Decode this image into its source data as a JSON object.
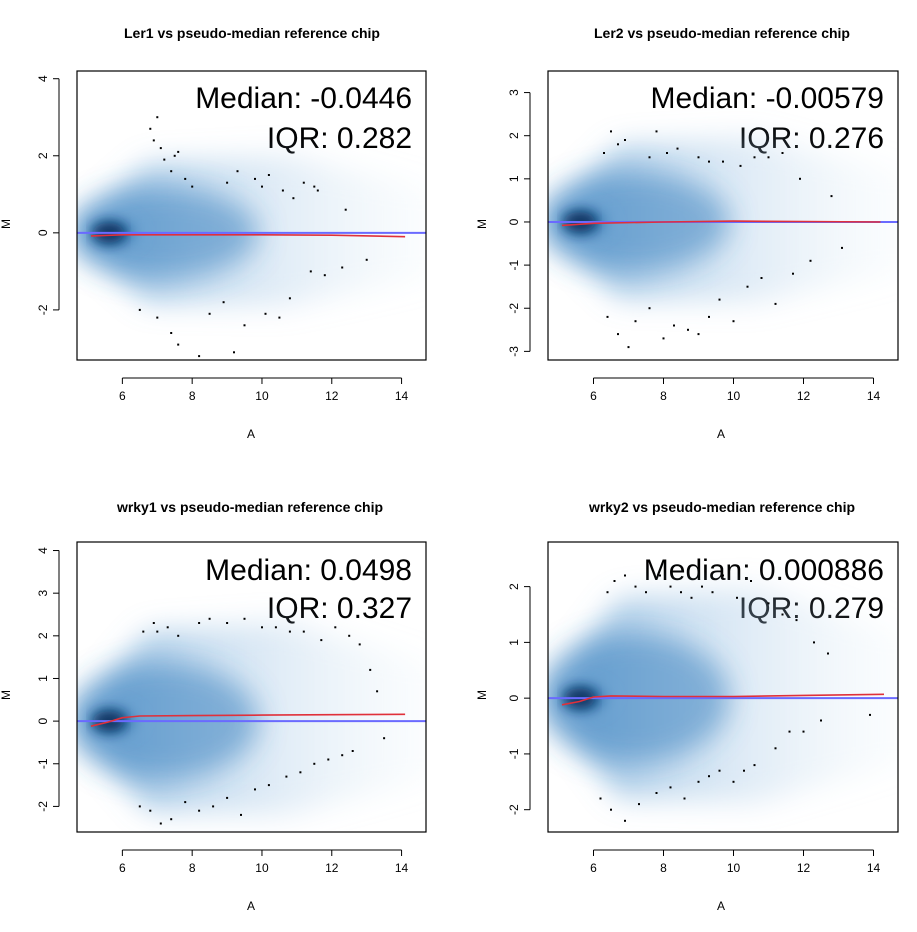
{
  "figure": {
    "panels": [
      {
        "title": "Ler1 vs pseudo-median reference chip",
        "median_text": "Median: -0.0446",
        "iqr_text": "IQR: 0.282",
        "xlabel": "A",
        "ylabel": "M"
      },
      {
        "title": "Ler2 vs pseudo-median reference chip",
        "median_text": "Median: -0.00579",
        "iqr_text": "IQR: 0.276",
        "xlabel": "A",
        "ylabel": "M"
      },
      {
        "title": "wrky1 vs pseudo-median reference chip",
        "median_text": "Median: 0.0498",
        "iqr_text": "IQR: 0.327",
        "xlabel": "A",
        "ylabel": "M"
      },
      {
        "title": "wrky2 vs pseudo-median reference chip",
        "median_text": "Median: 0.000886",
        "iqr_text": "IQR: 0.279",
        "xlabel": "A",
        "ylabel": "M"
      }
    ]
  },
  "colors": {
    "density": "#2b7bba",
    "zero_line": "#6a6aff",
    "loess_line": "#e0303a",
    "outlier_points": "#000000"
  },
  "chart_data": [
    {
      "type": "scatter",
      "title": "Ler1 vs pseudo-median reference chip",
      "xlabel": "A",
      "ylabel": "M",
      "xlim": [
        4.7,
        14.7
      ],
      "ylim": [
        -3.3,
        4.2
      ],
      "xticks": [
        6,
        8,
        10,
        12,
        14
      ],
      "yticks": [
        -2,
        0,
        2,
        4
      ],
      "density_center": [
        5.6,
        0
      ],
      "median": -0.0446,
      "iqr": 0.282,
      "zero_line": 0,
      "loess": {
        "x": [
          5.1,
          6,
          8,
          10,
          12,
          14.1
        ],
        "y": [
          -0.08,
          -0.05,
          -0.05,
          -0.05,
          -0.06,
          -0.1
        ]
      },
      "outliers": {
        "x": [
          6.8,
          6.9,
          7.0,
          7.1,
          7.2,
          7.4,
          7.5,
          7.6,
          7.8,
          8.0,
          9.0,
          9.3,
          9.8,
          10.0,
          10.2,
          10.6,
          10.9,
          11.2,
          11.5,
          11.6,
          12.4,
          6.5,
          7.0,
          7.4,
          7.6,
          8.2,
          8.5,
          8.9,
          9.2,
          9.5,
          10.1,
          10.5,
          10.8,
          11.4,
          11.8,
          12.3,
          13.0
        ],
        "y": [
          2.7,
          2.4,
          3.0,
          2.2,
          1.9,
          1.6,
          2.0,
          2.1,
          1.4,
          1.2,
          1.3,
          1.6,
          1.4,
          1.2,
          1.5,
          1.1,
          0.9,
          1.3,
          1.2,
          1.1,
          0.6,
          -2.0,
          -2.2,
          -2.6,
          -2.9,
          -3.2,
          -2.1,
          -1.8,
          -3.1,
          -2.4,
          -2.1,
          -2.2,
          -1.7,
          -1.0,
          -1.1,
          -0.9,
          -0.7
        ]
      }
    },
    {
      "type": "scatter",
      "title": "Ler2 vs pseudo-median reference chip",
      "xlabel": "A",
      "ylabel": "M",
      "xlim": [
        4.7,
        14.7
      ],
      "ylim": [
        -3.2,
        3.5
      ],
      "xticks": [
        6,
        8,
        10,
        12,
        14
      ],
      "yticks": [
        -3,
        -2,
        -1,
        0,
        1,
        2,
        3
      ],
      "density_center": [
        5.6,
        0
      ],
      "median": -0.00579,
      "iqr": 0.276,
      "zero_line": 0,
      "loess": {
        "x": [
          5.1,
          6,
          8,
          10,
          12,
          14.2
        ],
        "y": [
          -0.08,
          -0.03,
          0.0,
          0.02,
          0.01,
          0.0
        ]
      },
      "outliers": {
        "x": [
          6.3,
          6.5,
          6.7,
          6.9,
          7.6,
          7.8,
          8.1,
          8.4,
          9.0,
          9.3,
          9.7,
          10.2,
          10.6,
          11.0,
          11.4,
          11.9,
          12.8,
          6.4,
          6.7,
          7.0,
          7.2,
          7.6,
          8.0,
          8.3,
          8.7,
          9.0,
          9.3,
          9.6,
          10.0,
          10.4,
          10.8,
          11.2,
          11.7,
          12.2,
          13.1
        ],
        "y": [
          1.6,
          2.1,
          1.8,
          1.9,
          1.5,
          2.1,
          1.6,
          1.7,
          1.5,
          1.4,
          1.4,
          1.3,
          1.5,
          1.5,
          1.6,
          1.0,
          0.6,
          -2.2,
          -2.6,
          -2.9,
          -2.3,
          -2.0,
          -2.7,
          -2.4,
          -2.5,
          -2.6,
          -2.2,
          -1.8,
          -2.3,
          -1.5,
          -1.3,
          -1.9,
          -1.2,
          -0.9,
          -0.6
        ]
      }
    },
    {
      "type": "scatter",
      "title": "wrky1 vs pseudo-median reference chip",
      "xlabel": "A",
      "ylabel": "M",
      "xlim": [
        4.7,
        14.7
      ],
      "ylim": [
        -2.6,
        4.2
      ],
      "xticks": [
        6,
        8,
        10,
        12,
        14
      ],
      "yticks": [
        -2,
        -1,
        0,
        1,
        2,
        3,
        4
      ],
      "density_center": [
        5.6,
        0
      ],
      "median": 0.0498,
      "iqr": 0.327,
      "zero_line": 0,
      "loess": {
        "x": [
          5.1,
          5.6,
          6,
          6.5,
          8,
          10,
          12,
          14.1
        ],
        "y": [
          -0.12,
          -0.02,
          0.08,
          0.12,
          0.13,
          0.14,
          0.15,
          0.16
        ]
      },
      "outliers": {
        "x": [
          6.6,
          6.9,
          7.0,
          7.3,
          7.6,
          8.2,
          8.5,
          9.0,
          9.5,
          10.0,
          10.4,
          10.8,
          11.2,
          11.7,
          12.1,
          12.5,
          12.8,
          13.1,
          13.3,
          6.5,
          6.8,
          7.1,
          7.4,
          7.8,
          8.2,
          8.6,
          9.0,
          9.4,
          9.8,
          10.2,
          10.7,
          11.1,
          11.5,
          11.9,
          12.3,
          12.6,
          13.5
        ],
        "y": [
          2.1,
          2.3,
          2.1,
          2.2,
          2.0,
          2.3,
          2.4,
          2.3,
          2.4,
          2.2,
          2.2,
          2.1,
          2.1,
          1.9,
          2.2,
          2.0,
          1.8,
          1.2,
          0.7,
          -2.0,
          -2.1,
          -2.4,
          -2.3,
          -1.9,
          -2.1,
          -2.0,
          -1.8,
          -2.2,
          -1.6,
          -1.5,
          -1.3,
          -1.2,
          -1.0,
          -0.9,
          -0.8,
          -0.7,
          -0.4
        ]
      }
    },
    {
      "type": "scatter",
      "title": "wrky2 vs pseudo-median reference chip",
      "xlabel": "A",
      "ylabel": "M",
      "xlim": [
        4.7,
        14.7
      ],
      "ylim": [
        -2.4,
        2.8
      ],
      "xticks": [
        6,
        8,
        10,
        12,
        14
      ],
      "yticks": [
        -2,
        -1,
        0,
        1,
        2
      ],
      "density_center": [
        5.6,
        0
      ],
      "median": 0.000886,
      "iqr": 0.279,
      "zero_line": 0,
      "loess": {
        "x": [
          5.1,
          5.6,
          6,
          6.5,
          8,
          10,
          12,
          14.3
        ],
        "y": [
          -0.12,
          -0.06,
          0.02,
          0.04,
          0.03,
          0.03,
          0.05,
          0.07
        ]
      },
      "outliers": {
        "x": [
          6.4,
          6.6,
          6.9,
          7.2,
          7.5,
          7.9,
          8.2,
          8.5,
          8.8,
          9.1,
          9.4,
          9.7,
          10.1,
          10.5,
          11.0,
          11.4,
          11.8,
          12.3,
          12.7,
          6.2,
          6.5,
          6.9,
          7.3,
          7.8,
          8.2,
          8.6,
          9.0,
          9.3,
          9.6,
          10.0,
          10.3,
          10.6,
          11.2,
          11.6,
          12.0,
          12.5,
          13.9
        ],
        "y": [
          1.9,
          2.1,
          2.2,
          2.0,
          1.9,
          2.2,
          2.0,
          1.9,
          1.8,
          2.0,
          1.9,
          2.2,
          1.8,
          2.1,
          1.7,
          1.5,
          1.4,
          1.0,
          0.8,
          -1.8,
          -2.0,
          -2.2,
          -1.9,
          -1.7,
          -1.6,
          -1.8,
          -1.5,
          -1.4,
          -1.3,
          -1.5,
          -1.3,
          -1.2,
          -0.9,
          -0.6,
          -0.6,
          -0.4,
          -0.3
        ]
      }
    }
  ]
}
